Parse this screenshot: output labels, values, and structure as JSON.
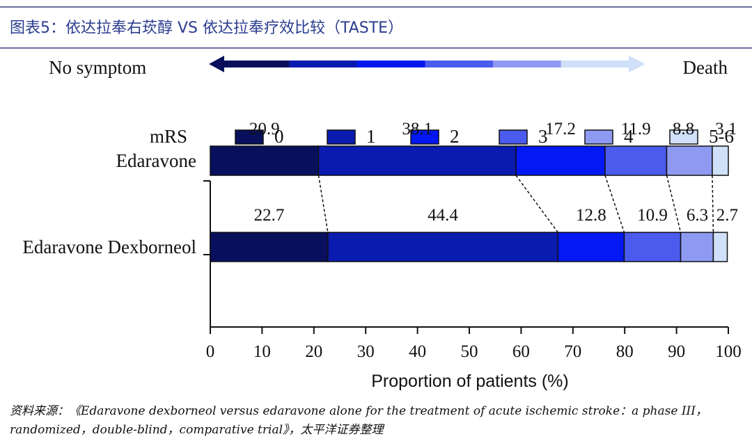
{
  "figure_title": "图表5：依达拉奉右莰醇 VS 依达拉奉疗效比较（TASTE）",
  "source_line1": "资料来源：《Edaravone dexborneol versus edaravone alone for the treatment of acute ischemic stroke：a phase III，",
  "source_line2": "randomized，double-blind，comparative trial》，太平洋证券整理",
  "scale": {
    "left_label": "No symptom",
    "right_label": "Death",
    "colors": [
      "#08105e",
      "#0a1bb0",
      "#0318f2",
      "#4a5bee",
      "#8e9af2",
      "#cfe0f8"
    ]
  },
  "chart_data": {
    "type": "bar",
    "orientation": "horizontal",
    "stacked": true,
    "legend_title": "mRS",
    "legend_placement": "top",
    "categories": [
      "Edaravone",
      "Edaravone Dexborneol"
    ],
    "series": [
      {
        "name": "0",
        "color": "#08105e",
        "values": [
          20.9,
          22.7
        ]
      },
      {
        "name": "1",
        "color": "#0a1bb0",
        "values": [
          38.1,
          44.4
        ]
      },
      {
        "name": "2",
        "color": "#0318f2",
        "values": [
          17.2,
          12.8
        ]
      },
      {
        "name": "3",
        "color": "#4a5bee",
        "values": [
          11.9,
          10.9
        ]
      },
      {
        "name": "4",
        "color": "#8e9af2",
        "values": [
          8.8,
          6.3
        ]
      },
      {
        "name": "5-6",
        "color": "#cfe0f8",
        "values": [
          3.1,
          2.7
        ]
      }
    ],
    "value_labels": [
      [
        "20.9",
        "38.1",
        "17.2",
        "11.9",
        "8.8",
        "3.1"
      ],
      [
        "22.7",
        "44.4",
        "12.8",
        "10.9",
        "6.3",
        "2.7"
      ]
    ],
    "xlabel": "Proportion of patients (%)",
    "ylabel": "",
    "xlim": [
      0,
      100
    ],
    "xticks": [
      0,
      10,
      20,
      30,
      40,
      50,
      60,
      70,
      80,
      90,
      100
    ],
    "connectors": "dashed",
    "grid": false
  }
}
